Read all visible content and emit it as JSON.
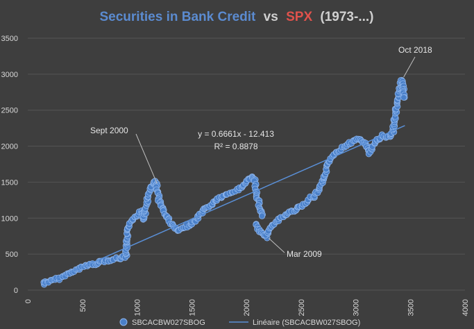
{
  "chart_data": {
    "type": "scatter",
    "title": {
      "part1": "Securities in Bank Credit",
      "part2": "vs",
      "part3": "SPX",
      "part4": "(1973-...)"
    },
    "colors": {
      "background": "#3e3e3e",
      "title_blue": "#5b8bd0",
      "title_red": "#e0524c",
      "title_gray": "#d0d0d0",
      "marker": "#4a7fc8",
      "marker_edge": "#8fb6ec",
      "trendline": "#5a8fd6",
      "grid": "#555555",
      "text": "#d9d9d9"
    },
    "x_axis": {
      "range": [
        0,
        4000
      ],
      "ticks": [
        "0",
        "500",
        "1000",
        "1500",
        "2000",
        "2500",
        "3000",
        "3500",
        "4000"
      ],
      "label_rotation": -90
    },
    "y_axis": {
      "range": [
        0,
        3500
      ],
      "ticks": [
        "0",
        "500",
        "1000",
        "1500",
        "2000",
        "2500",
        "3000",
        "3500"
      ]
    },
    "grid": {
      "horizontal": true,
      "vertical": false
    },
    "series": [
      {
        "name": "SBCACBW027SBOG",
        "marker": "circle",
        "path": [
          [
            150,
            80
          ],
          [
            160,
            120
          ],
          [
            180,
            110
          ],
          [
            220,
            130
          ],
          [
            280,
            160
          ],
          [
            350,
            210
          ],
          [
            430,
            270
          ],
          [
            480,
            300
          ],
          [
            520,
            340
          ],
          [
            600,
            360
          ],
          [
            680,
            400
          ],
          [
            760,
            420
          ],
          [
            820,
            440
          ],
          [
            870,
            450
          ],
          [
            900,
            470
          ],
          [
            905,
            600
          ],
          [
            915,
            800
          ],
          [
            930,
            920
          ],
          [
            960,
            1000
          ],
          [
            1000,
            1050
          ],
          [
            1040,
            1100
          ],
          [
            1060,
            980
          ],
          [
            1080,
            1150
          ],
          [
            1100,
            1280
          ],
          [
            1120,
            1400
          ],
          [
            1150,
            1480
          ],
          [
            1170,
            1520
          ],
          [
            1190,
            1380
          ],
          [
            1200,
            1250
          ],
          [
            1230,
            1150
          ],
          [
            1260,
            1050
          ],
          [
            1300,
            950
          ],
          [
            1340,
            870
          ],
          [
            1380,
            820
          ],
          [
            1420,
            850
          ],
          [
            1460,
            900
          ],
          [
            1500,
            930
          ],
          [
            1540,
            970
          ],
          [
            1580,
            1050
          ],
          [
            1620,
            1120
          ],
          [
            1660,
            1160
          ],
          [
            1700,
            1220
          ],
          [
            1740,
            1270
          ],
          [
            1780,
            1300
          ],
          [
            1820,
            1320
          ],
          [
            1860,
            1350
          ],
          [
            1900,
            1380
          ],
          [
            1940,
            1420
          ],
          [
            1980,
            1470
          ],
          [
            2020,
            1530
          ],
          [
            2060,
            1580
          ],
          [
            2080,
            1500
          ],
          [
            2100,
            1300
          ],
          [
            2120,
            1150
          ],
          [
            2150,
            1000
          ]
        ],
        "path2": [
          [
            2090,
            920
          ],
          [
            2110,
            860
          ],
          [
            2130,
            800
          ],
          [
            2160,
            760
          ],
          [
            2180,
            740
          ],
          [
            2200,
            820
          ],
          [
            2240,
            900
          ],
          [
            2300,
            980
          ],
          [
            2360,
            1050
          ],
          [
            2420,
            1100
          ],
          [
            2480,
            1150
          ],
          [
            2540,
            1200
          ],
          [
            2580,
            1280
          ],
          [
            2620,
            1300
          ],
          [
            2660,
            1380
          ],
          [
            2700,
            1500
          ],
          [
            2730,
            1650
          ],
          [
            2760,
            1800
          ],
          [
            2800,
            1900
          ],
          [
            2850,
            1950
          ],
          [
            2900,
            2000
          ],
          [
            2950,
            2050
          ],
          [
            3000,
            2080
          ],
          [
            3050,
            2100
          ],
          [
            3100,
            2000
          ],
          [
            3130,
            1900
          ],
          [
            3160,
            2000
          ],
          [
            3200,
            2100
          ],
          [
            3250,
            2150
          ],
          [
            3300,
            2120
          ],
          [
            3340,
            2200
          ],
          [
            3360,
            2400
          ],
          [
            3380,
            2600
          ],
          [
            3400,
            2750
          ],
          [
            3420,
            2930
          ],
          [
            3440,
            2800
          ],
          [
            3450,
            2650
          ]
        ]
      },
      {
        "name": "Linéaire (SBCACBW027SBOG)",
        "type": "trendline",
        "x_range": [
          150,
          3450
        ]
      }
    ],
    "trendline": {
      "slope": 0.6661,
      "intercept": -12.413
    },
    "annotations": {
      "equation": "y = 0.6661x - 12.413",
      "r_squared": "R² = 0.8878",
      "sept2000": {
        "text": "Sept 2000",
        "point": [
          1170,
          1520
        ]
      },
      "mar2009": {
        "text": "Mar 2009",
        "point": [
          2180,
          740
        ]
      },
      "oct2018": {
        "text": "Oct 2018",
        "point": [
          3420,
          2930
        ]
      }
    }
  }
}
